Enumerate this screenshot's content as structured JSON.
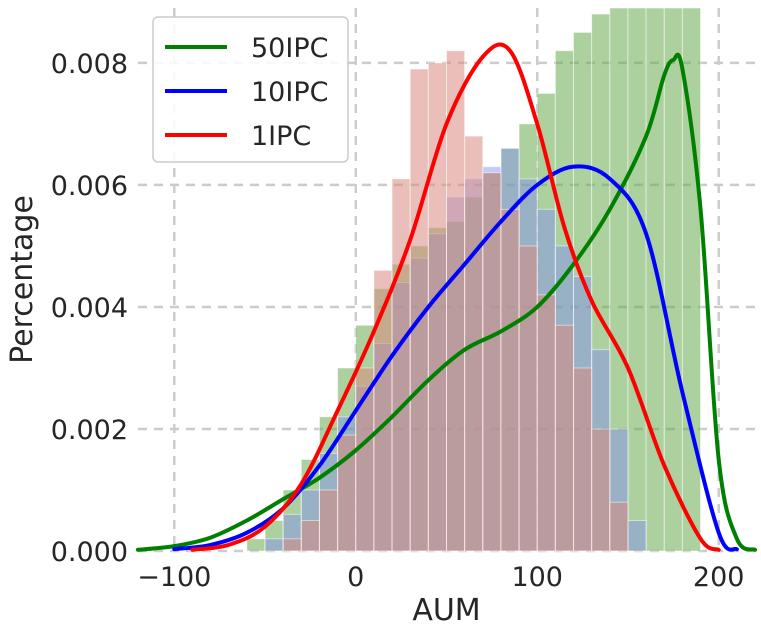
{
  "chart_data": {
    "type": "area",
    "title": "",
    "xlabel": "AUM",
    "ylabel": "Percentage",
    "xlim": [
      -120,
      220
    ],
    "ylim": [
      0,
      0.0089
    ],
    "x_ticks": [
      -100,
      0,
      100,
      200
    ],
    "y_ticks": [
      0.0,
      0.002,
      0.004,
      0.006,
      0.008
    ],
    "x_tick_labels": [
      "−100",
      "0",
      "100",
      "200"
    ],
    "y_tick_labels": [
      "0.000",
      "0.002",
      "0.004",
      "0.006",
      "0.008"
    ],
    "grid": true,
    "legend_position": "top-left",
    "histogram_bin_width": 10,
    "series": [
      {
        "name": "50IPC",
        "color": "#008000",
        "hist_color": "#6aaa50",
        "hist_opacity": 0.55,
        "hist_x0": -60,
        "hist_values": [
          0.0002,
          0.0005,
          0.001,
          0.0015,
          0.0022,
          0.003,
          0.0037,
          0.0043,
          0.0047,
          0.005,
          0.0053,
          0.0054,
          0.0058,
          0.0062,
          0.0066,
          0.007,
          0.0075,
          0.0082,
          0.0085,
          0.0088,
          0.009,
          0.009,
          0.009,
          0.009,
          0.009
        ],
        "kde_x": [
          -120,
          -100,
          -80,
          -60,
          -40,
          -20,
          0,
          20,
          40,
          60,
          80,
          100,
          120,
          140,
          160,
          170,
          175,
          180,
          190,
          200,
          210,
          220
        ],
        "kde_y": [
          2e-05,
          8e-05,
          0.00022,
          0.0005,
          0.00085,
          0.0012,
          0.00165,
          0.0022,
          0.0028,
          0.0033,
          0.0036,
          0.004,
          0.0047,
          0.0056,
          0.0068,
          0.0078,
          0.00805,
          0.0079,
          0.0056,
          0.0015,
          0.0002,
          2e-05
        ]
      },
      {
        "name": "10IPC",
        "color": "#0000ff",
        "hist_color": "#7f8cf2",
        "hist_opacity": 0.45,
        "hist_x0": -50,
        "hist_values": [
          0.0002,
          0.0006,
          0.001,
          0.0016,
          0.0022,
          0.0027,
          0.0034,
          0.0044,
          0.0048,
          0.0052,
          0.0058,
          0.0061,
          0.0063,
          0.0066,
          0.0061,
          0.0056,
          0.005,
          0.0045,
          0.0033,
          0.002,
          0.0005
        ],
        "kde_x": [
          -100,
          -80,
          -60,
          -40,
          -20,
          0,
          20,
          40,
          60,
          80,
          100,
          120,
          140,
          160,
          180,
          200,
          210
        ],
        "kde_y": [
          3e-05,
          0.0001,
          0.0003,
          0.0007,
          0.0014,
          0.0023,
          0.0032,
          0.004,
          0.0047,
          0.0054,
          0.006,
          0.0063,
          0.0061,
          0.0052,
          0.0026,
          0.0003,
          3e-05
        ]
      },
      {
        "name": "1IPC",
        "color": "#ff0000",
        "hist_color": "#d98a80",
        "hist_opacity": 0.55,
        "hist_x0": -40,
        "hist_values": [
          0.0002,
          0.0005,
          0.001,
          0.0019,
          0.003,
          0.0046,
          0.0061,
          0.0079,
          0.008,
          0.0082,
          0.0068,
          0.0062,
          0.0056,
          0.005,
          0.0042,
          0.0037,
          0.003,
          0.002,
          0.0008
        ],
        "kde_x": [
          -90,
          -70,
          -50,
          -30,
          -10,
          10,
          30,
          50,
          70,
          85,
          100,
          115,
          130,
          150,
          170,
          190,
          200
        ],
        "kde_y": [
          2e-05,
          0.0001,
          0.0004,
          0.0011,
          0.0023,
          0.0036,
          0.0051,
          0.007,
          0.0081,
          0.0082,
          0.007,
          0.0053,
          0.0041,
          0.003,
          0.0014,
          0.0002,
          2e-05
        ]
      }
    ]
  }
}
